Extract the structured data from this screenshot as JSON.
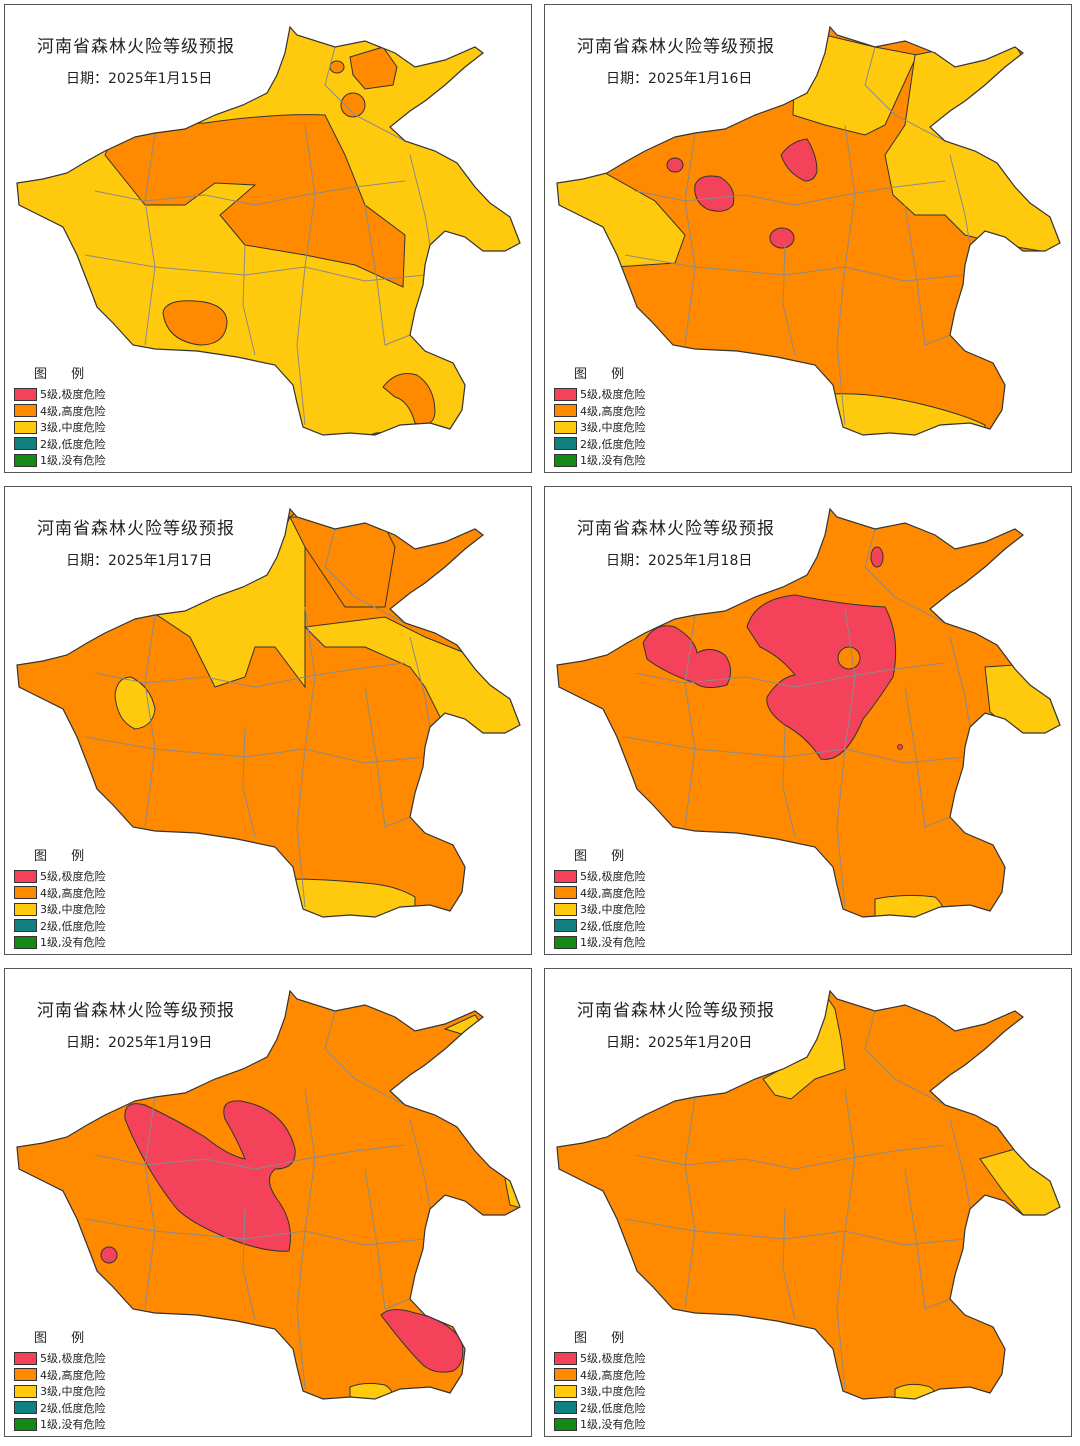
{
  "panels": [
    {
      "title": "河南省森林火险等级预报",
      "date": "日期：2025年1月15日"
    },
    {
      "title": "河南省森林火险等级预报",
      "date": "日期：2025年1月16日"
    },
    {
      "title": "河南省森林火险等级预报",
      "date": "日期：2025年1月17日"
    },
    {
      "title": "河南省森林火险等级预报",
      "date": "日期：2025年1月18日"
    },
    {
      "title": "河南省森林火险等级预报",
      "date": "日期：2025年1月19日"
    },
    {
      "title": "河南省森林火险等级预报",
      "date": "日期：2025年1月20日"
    }
  ],
  "legend": {
    "title": "图 例",
    "items": [
      {
        "label": "5级,极度危险",
        "color": "#f4425a"
      },
      {
        "label": "4级,高度危险",
        "color": "#ff8a00"
      },
      {
        "label": "3级,中度危险",
        "color": "#ffc90e"
      },
      {
        "label": "2级,低度危险",
        "color": "#118080"
      },
      {
        "label": "1级,没有危险",
        "color": "#138a13"
      }
    ]
  }
}
